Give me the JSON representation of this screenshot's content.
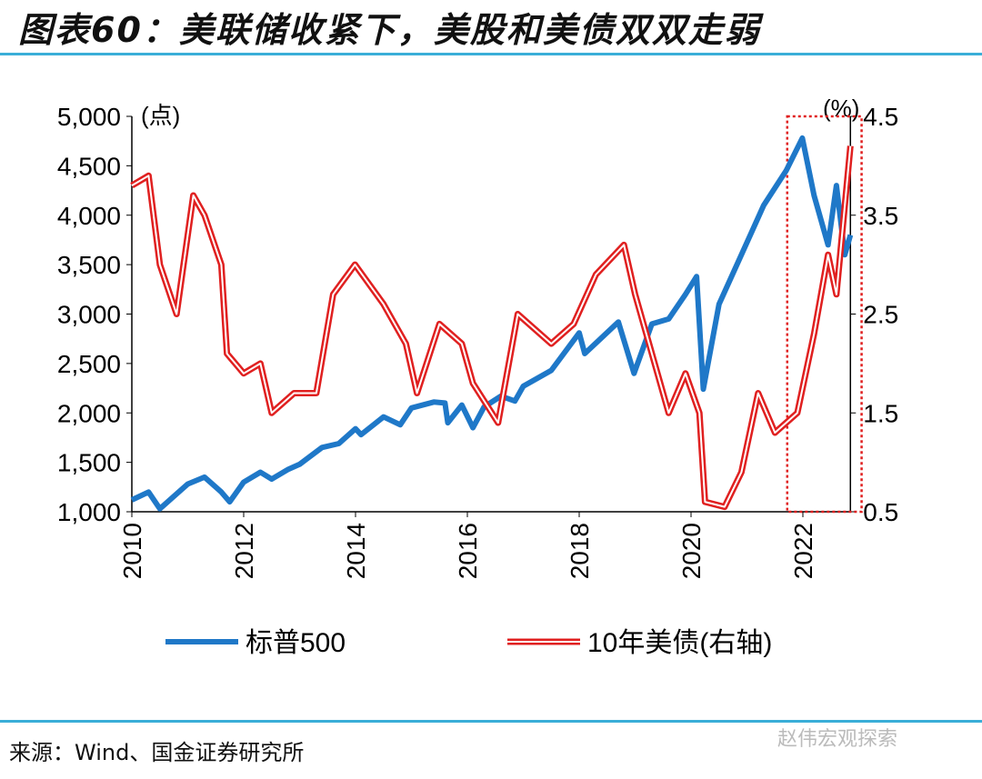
{
  "title": "图表60：美联储收紧下，美股和美债双双走弱",
  "source": "来源：Wind、国金证券研究所",
  "watermark": "赵伟宏观探索",
  "chart_data": {
    "type": "line",
    "title": "图表60：美联储收紧下，美股和美债双双走弱",
    "left_axis": {
      "label": "(点)",
      "range": [
        1000,
        5000
      ],
      "ticks": [
        "1,000",
        "1,500",
        "2,000",
        "2,500",
        "3,000",
        "3,500",
        "4,000",
        "4,500",
        "5,000"
      ],
      "tick_values": [
        1000,
        1500,
        2000,
        2500,
        3000,
        3500,
        4000,
        4500,
        5000
      ]
    },
    "right_axis": {
      "label": "(%)",
      "range": [
        0.5,
        4.5
      ],
      "ticks": [
        "0.5",
        "1.5",
        "2.5",
        "3.5",
        "4.5"
      ],
      "tick_values": [
        0.5,
        1.5,
        2.5,
        3.5,
        4.5
      ]
    },
    "x_axis": {
      "range": [
        2010,
        2022.85
      ],
      "ticks": [
        "2010",
        "2012",
        "2014",
        "2016",
        "2018",
        "2020",
        "2022"
      ],
      "tick_values": [
        2010,
        2012,
        2014,
        2016,
        2018,
        2020,
        2022
      ]
    },
    "highlight_box": {
      "x_range": [
        2021.72,
        2023.05
      ],
      "color": "#e02020"
    },
    "legend_position": "bottom",
    "series": [
      {
        "name": "标普500",
        "axis": "left",
        "color": "#1f78c8",
        "x": [
          2010.0,
          2010.3,
          2010.5,
          2010.8,
          2011.0,
          2011.3,
          2011.6,
          2011.75,
          2012.0,
          2012.3,
          2012.5,
          2012.8,
          2013.0,
          2013.4,
          2013.7,
          2014.0,
          2014.1,
          2014.5,
          2014.8,
          2015.0,
          2015.4,
          2015.6,
          2015.65,
          2015.9,
          2016.1,
          2016.3,
          2016.6,
          2016.85,
          2017.0,
          2017.5,
          2018.0,
          2018.1,
          2018.7,
          2018.98,
          2019.3,
          2019.6,
          2019.9,
          2020.1,
          2020.22,
          2020.5,
          2020.9,
          2021.3,
          2021.7,
          2021.99,
          2022.2,
          2022.45,
          2022.6,
          2022.75,
          2022.85
        ],
        "values": [
          1120,
          1200,
          1030,
          1180,
          1280,
          1350,
          1200,
          1100,
          1300,
          1400,
          1330,
          1430,
          1480,
          1650,
          1690,
          1840,
          1780,
          1960,
          1880,
          2050,
          2110,
          2100,
          1900,
          2080,
          1850,
          2060,
          2170,
          2120,
          2270,
          2430,
          2810,
          2600,
          2920,
          2400,
          2900,
          2950,
          3200,
          3380,
          2240,
          3100,
          3600,
          4100,
          4450,
          4780,
          4200,
          3700,
          4300,
          3600,
          3800
        ]
      },
      {
        "name": "10年美债(右轴)",
        "axis": "right",
        "color": "#e02020",
        "x": [
          2010.0,
          2010.3,
          2010.5,
          2010.8,
          2011.1,
          2011.3,
          2011.6,
          2011.7,
          2012.0,
          2012.3,
          2012.5,
          2012.9,
          2013.3,
          2013.6,
          2013.99,
          2014.5,
          2014.9,
          2015.1,
          2015.5,
          2015.9,
          2016.1,
          2016.55,
          2016.9,
          2017.5,
          2017.9,
          2018.3,
          2018.8,
          2019.0,
          2019.6,
          2019.9,
          2020.15,
          2020.25,
          2020.6,
          2020.9,
          2021.2,
          2021.5,
          2021.9,
          2022.2,
          2022.45,
          2022.6,
          2022.85
        ],
        "values": [
          3.8,
          3.9,
          3.0,
          2.5,
          3.7,
          3.5,
          3.0,
          2.1,
          1.9,
          2.0,
          1.5,
          1.7,
          1.7,
          2.7,
          3.0,
          2.6,
          2.2,
          1.7,
          2.4,
          2.2,
          1.8,
          1.4,
          2.5,
          2.2,
          2.4,
          2.9,
          3.2,
          2.7,
          1.5,
          1.9,
          1.5,
          0.6,
          0.55,
          0.9,
          1.7,
          1.3,
          1.5,
          2.3,
          3.1,
          2.7,
          4.2
        ]
      }
    ]
  }
}
